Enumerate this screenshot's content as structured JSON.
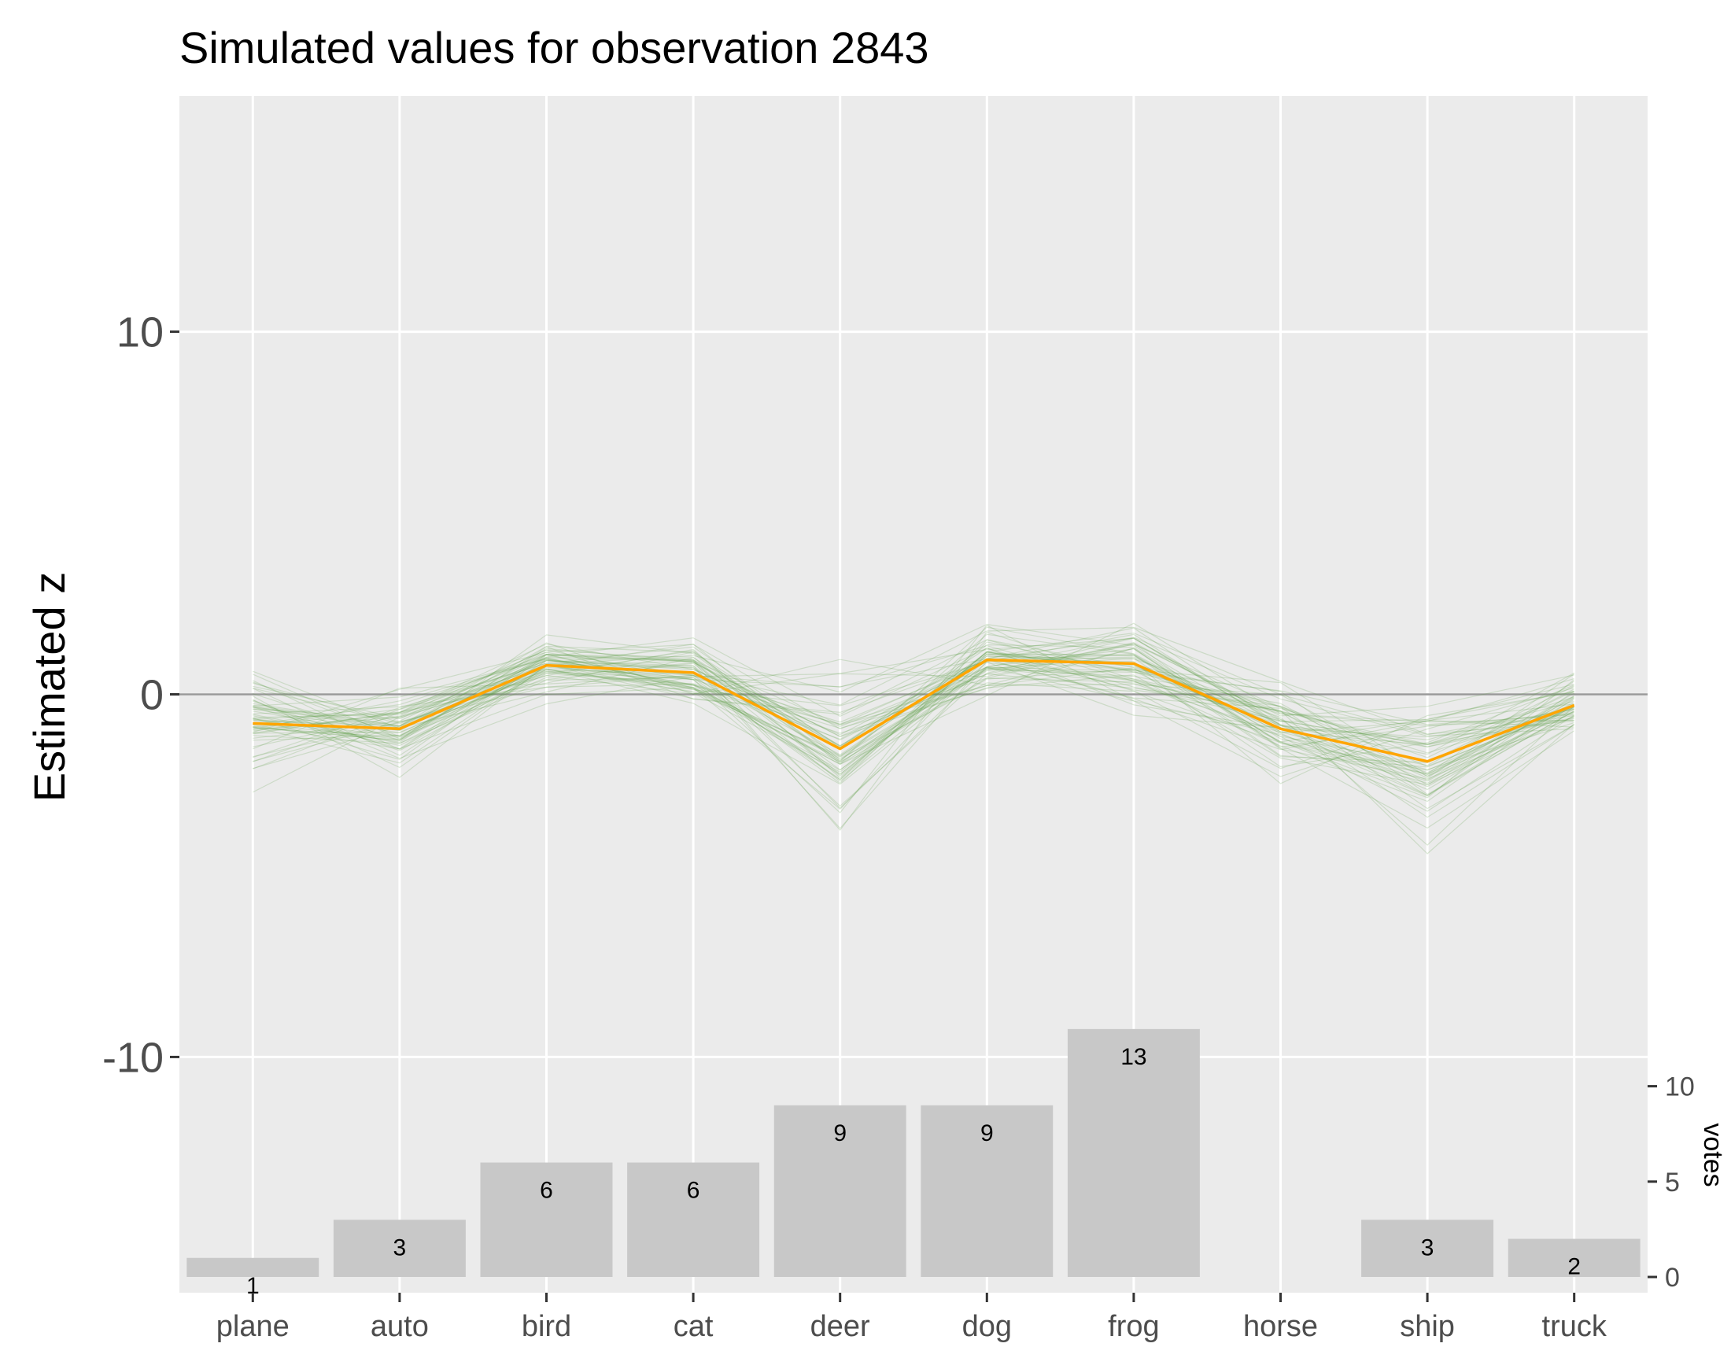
{
  "chart_data": {
    "type": "line",
    "title": "Simulated values for observation 2843",
    "ylabel": "Estimated z",
    "categories": [
      "plane",
      "auto",
      "bird",
      "cat",
      "deer",
      "dog",
      "frog",
      "horse",
      "ship",
      "truck"
    ],
    "ylim": [
      -16.5,
      16.5
    ],
    "yticks": [
      -10,
      0,
      10
    ],
    "grid": true,
    "reference_line": 0,
    "series": [
      {
        "values": [
          -0.8,
          -0.95,
          0.8,
          0.6,
          -1.5,
          0.95,
          0.85,
          -0.95,
          -1.85,
          -0.3
        ],
        "color": "#FFA500"
      }
    ],
    "simulations": {
      "count": 60,
      "color": "#5E9E4A",
      "spread": [
        0.7,
        0.55,
        0.4,
        0.5,
        1.1,
        0.45,
        0.55,
        0.6,
        0.9,
        0.45
      ]
    },
    "bars": {
      "type": "bar",
      "axis_label": "votes",
      "values": [
        1,
        3,
        6,
        6,
        9,
        9,
        13,
        0,
        3,
        2
      ],
      "labels": [
        "1",
        "3",
        "6",
        "6",
        "9",
        "9",
        "13",
        "",
        "3",
        "2"
      ],
      "yticks": [
        0,
        5,
        10
      ],
      "color": "#C8C8C8"
    }
  }
}
